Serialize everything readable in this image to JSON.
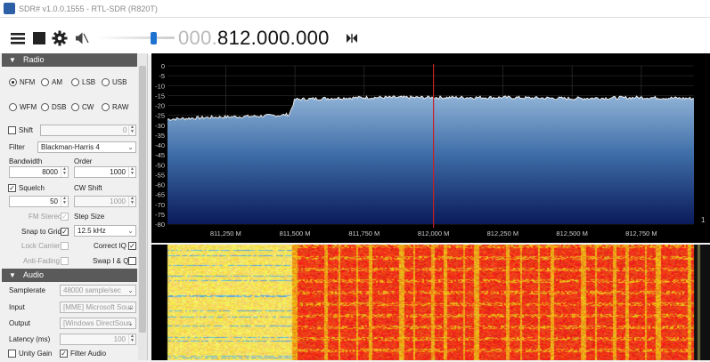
{
  "window": {
    "title": "SDR# v1.0.0.1555 - RTL-SDR (R820T)"
  },
  "toolbar": {
    "frequency_dim": "000.",
    "frequency_bright": "812.000.000",
    "icons": [
      "menu-icon",
      "stop-icon",
      "gear-icon",
      "mute-icon",
      "tuning-step-icon"
    ]
  },
  "radio": {
    "header": "Radio",
    "modes_row1": [
      "NFM",
      "AM",
      "LSB",
      "USB"
    ],
    "modes_row2": [
      "WFM",
      "DSB",
      "CW",
      "RAW"
    ],
    "selected_mode": "NFM",
    "shift_label": "Shift",
    "shift_value": "0",
    "filter_label": "Filter",
    "filter_value": "Blackman-Harris 4",
    "bandwidth_label": "Bandwidth",
    "bandwidth_value": "8000",
    "order_label": "Order",
    "order_value": "1000",
    "squelch_label": "Squelch",
    "squelch_value": "50",
    "cw_shift_label": "CW Shift",
    "cw_shift_value": "1000",
    "fm_stereo_label": "FM Stereo",
    "step_size_label": "Step Size",
    "snap_to_grid_label": "Snap to Grid",
    "step_size_value": "12.5 kHz",
    "lock_carrier_label": "Lock Carrier",
    "correct_iq_label": "Correct IQ",
    "anti_fading_label": "Anti-Fading",
    "swap_iq_label": "Swap I & Q"
  },
  "audio": {
    "header": "Audio",
    "samplerate_label": "Samplerate",
    "samplerate_value": "48000 sample/sec",
    "input_label": "Input",
    "input_value": "[MME] Microsoft Soun",
    "output_label": "Output",
    "output_value": "[Windows DirectSoun",
    "latency_label": "Latency (ms)",
    "latency_value": "100",
    "unity_gain_label": "Unity Gain",
    "filter_audio_label": "Filter Audio"
  },
  "spectrum": {
    "db_labels": [
      "0",
      "-5",
      "-10",
      "-15",
      "-20",
      "-25",
      "-30",
      "-35",
      "-40",
      "-45",
      "-50",
      "-55",
      "-60",
      "-65",
      "-70",
      "-75",
      "-80"
    ],
    "freq_labels": [
      "811,250 M",
      "811,500 M",
      "811,750 M",
      "812,000 M",
      "812,250 M",
      "812,500 M",
      "812,750 M"
    ],
    "center_frequency": "812,000 M",
    "side_marker": "1",
    "colors": {
      "trace": "#e8e8e8",
      "fill_top": "#8fb2d6",
      "fill_bottom": "#0a1a5a",
      "center_line": "#c82020"
    }
  },
  "chart_data": {
    "type": "area",
    "title": "",
    "xlabel": "",
    "ylabel": "",
    "xlim": [
      811.04,
      812.94
    ],
    "ylim": [
      -80,
      0
    ],
    "x": [
      811.04,
      811.2,
      811.35,
      811.45,
      811.48,
      811.5,
      811.6,
      811.75,
      812.0,
      812.25,
      812.5,
      812.75,
      812.94
    ],
    "values": [
      -27,
      -26,
      -25.5,
      -25,
      -24.5,
      -17,
      -16.5,
      -16,
      -16,
      -16,
      -16.5,
      -16,
      -16.5
    ]
  }
}
